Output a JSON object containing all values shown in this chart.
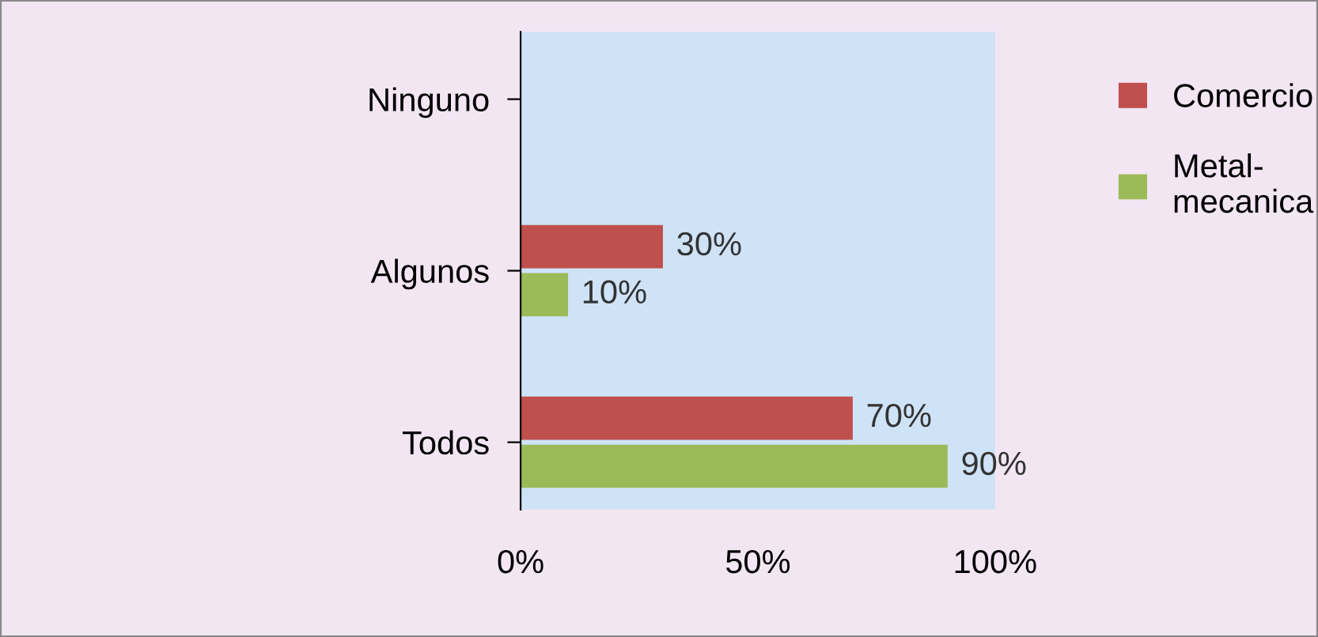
{
  "chart_data": {
    "type": "bar",
    "orientation": "horizontal",
    "categories": [
      "Ninguno",
      "Algunos",
      "Todos"
    ],
    "series": [
      {
        "name": "Comercio",
        "color": "#c0504d",
        "values": [
          0,
          30,
          70
        ],
        "value_labels": [
          null,
          "30%",
          "70%"
        ]
      },
      {
        "name": "Metal-\nmecanica",
        "color": "#9bbb59",
        "values": [
          0,
          10,
          90
        ],
        "value_labels": [
          null,
          "10%",
          "90%"
        ]
      }
    ],
    "xlim": [
      0,
      100
    ],
    "xticks": [
      {
        "value": 0,
        "label": "0%"
      },
      {
        "value": 50,
        "label": "50%"
      },
      {
        "value": 100,
        "label": "100%"
      }
    ],
    "grid": false,
    "legend": "right"
  }
}
